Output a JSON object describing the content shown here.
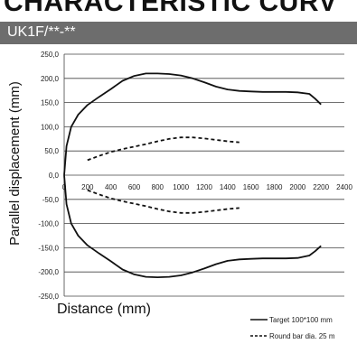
{
  "header": {
    "title": "CHARACTERISTIC CURV",
    "model": "UK1F/**-**"
  },
  "chart_data": {
    "type": "line",
    "title": "",
    "xlabel": "Distance (mm)",
    "ylabel": "Parallel displacement (mm)",
    "xlim": [
      0,
      2400
    ],
    "ylim": [
      -250,
      250
    ],
    "x_ticks": [
      0,
      200,
      400,
      600,
      800,
      1000,
      1200,
      1400,
      1600,
      1800,
      2000,
      2200,
      2400
    ],
    "y_ticks": [
      250,
      200,
      150,
      100,
      50,
      0,
      -50,
      -100,
      -150,
      -200,
      -250
    ],
    "x_tick_labels": [
      "0",
      "200",
      "400",
      "600",
      "800",
      "1000",
      "1200",
      "1400",
      "1600",
      "1800",
      "2000",
      "2200",
      "2400"
    ],
    "y_tick_labels": [
      "250,0",
      "200,0",
      "150,0",
      "100,0",
      "50,0",
      "0,0",
      "-50,0",
      "-100,0",
      "-150,0",
      "-200,0",
      "-250,0"
    ],
    "grid": "horizontal",
    "legend_position": "bottom-right",
    "series": [
      {
        "name": "Target 100*100 mm",
        "style": "solid",
        "color": "#111111",
        "x": [
          0,
          20,
          60,
          120,
          200,
          300,
          400,
          500,
          600,
          700,
          800,
          900,
          1000,
          1100,
          1200,
          1300,
          1400,
          1500,
          1600,
          1700,
          1800,
          1900,
          2000,
          2100,
          2150,
          2200
        ],
        "y": [
          0,
          60,
          100,
          125,
          145,
          162,
          178,
          195,
          205,
          210,
          210,
          209,
          206,
          200,
          192,
          183,
          177,
          174,
          173,
          172,
          172,
          172,
          171,
          168,
          158,
          146
        ]
      },
      {
        "name": "",
        "style": "solid",
        "color": "#111111",
        "x": [
          0,
          20,
          60,
          120,
          200,
          300,
          400,
          500,
          600,
          700,
          800,
          900,
          1000,
          1100,
          1200,
          1300,
          1400,
          1500,
          1600,
          1700,
          1800,
          1900,
          2000,
          2100,
          2150,
          2200
        ],
        "y": [
          0,
          -60,
          -100,
          -125,
          -145,
          -162,
          -178,
          -195,
          -205,
          -210,
          -211,
          -210,
          -207,
          -201,
          -193,
          -184,
          -177,
          -174,
          -173,
          -172,
          -172,
          -172,
          -171,
          -166,
          -157,
          -146
        ]
      },
      {
        "name": "Round bar dia. 25 m",
        "style": "dashed",
        "color": "#111111",
        "x": [
          200,
          300,
          400,
          500,
          600,
          700,
          800,
          900,
          1000,
          1100,
          1200,
          1300,
          1400,
          1500
        ],
        "y": [
          31,
          40,
          48,
          54,
          59,
          64,
          70,
          75,
          78,
          78,
          76,
          73,
          70,
          68
        ]
      },
      {
        "name": "",
        "style": "dashed",
        "color": "#111111",
        "x": [
          200,
          300,
          400,
          500,
          600,
          700,
          800,
          900,
          1000,
          1100,
          1200,
          1300,
          1400,
          1500
        ],
        "y": [
          -31,
          -40,
          -48,
          -54,
          -59,
          -64,
          -70,
          -75,
          -78,
          -78,
          -76,
          -73,
          -70,
          -68
        ]
      }
    ]
  }
}
